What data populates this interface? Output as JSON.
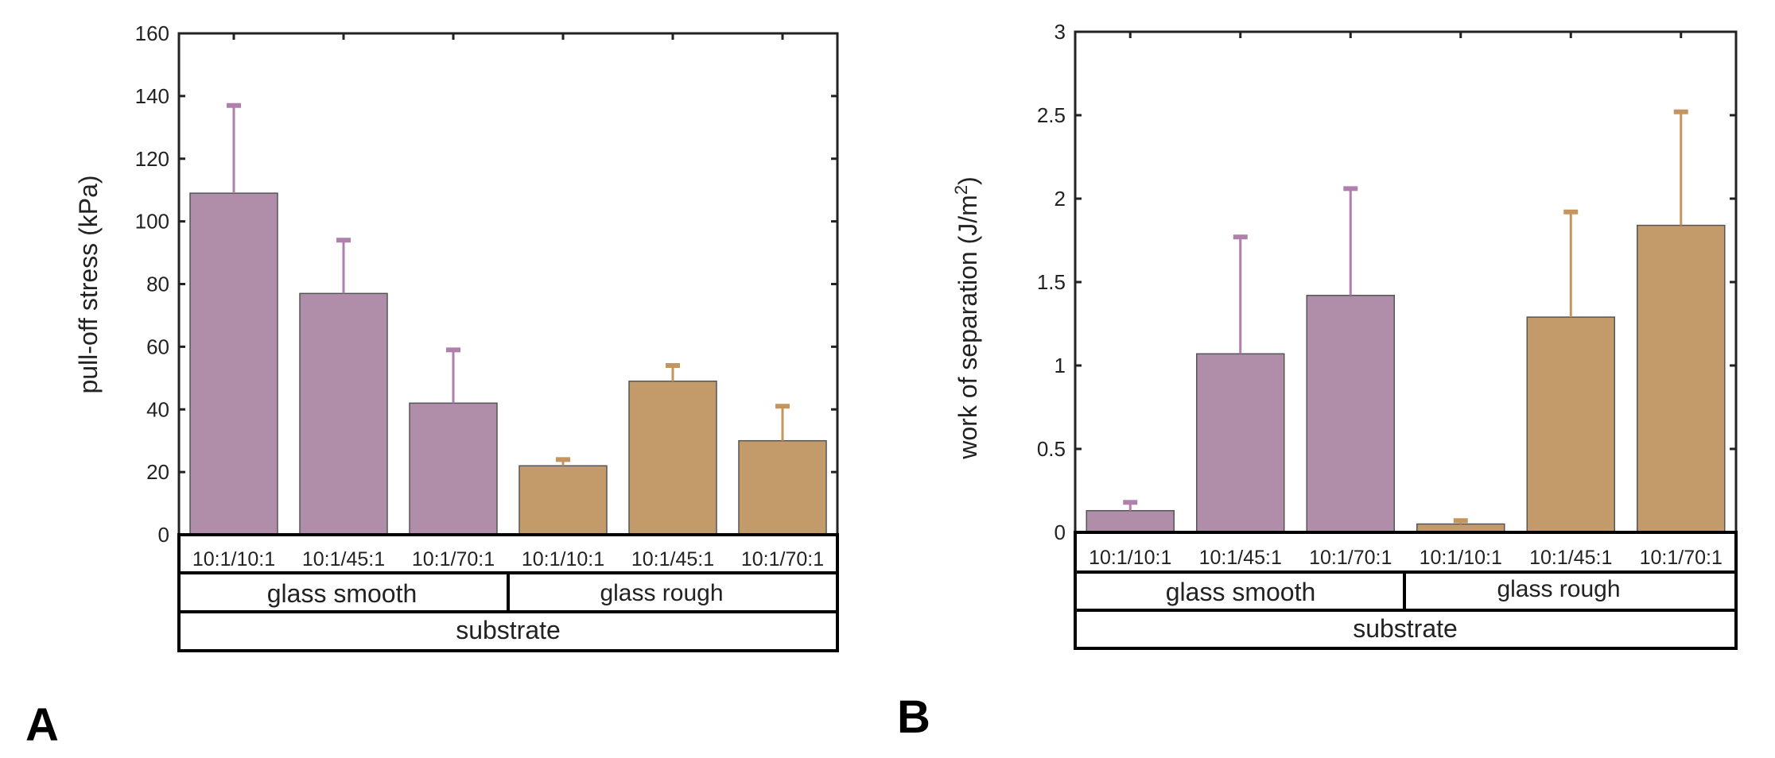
{
  "chart_data": [
    {
      "panel_label": "A",
      "type": "bar",
      "ylabel": "pull-off stress (kPa)",
      "ylim": [
        0,
        160
      ],
      "yticks": [
        "0",
        "20",
        "40",
        "60",
        "80",
        "100",
        "120",
        "140",
        "160"
      ],
      "ytick_values": [
        0,
        20,
        40,
        60,
        80,
        100,
        120,
        140,
        160
      ],
      "categories": [
        "10:1/10:1",
        "10:1/45:1",
        "10:1/70:1",
        "10:1/10:1",
        "10:1/45:1",
        "10:1/70:1"
      ],
      "values": [
        109,
        77,
        42,
        22,
        49,
        30
      ],
      "error_upper": [
        137,
        94,
        59,
        24,
        54,
        41
      ],
      "groups": [
        {
          "label": "glass smooth",
          "color": "#b08ea9",
          "error_color": "#b07fab",
          "start": 0,
          "count": 3
        },
        {
          "label": "glass rough",
          "color": "#c39b6b",
          "error_color": "#c4955f",
          "start": 3,
          "count": 3
        }
      ],
      "group_axis_label": "substrate"
    },
    {
      "panel_label": "B",
      "type": "bar",
      "ylabel_main": "work of separation (J/m",
      "ylabel_sup": "2",
      "ylabel_end": ")",
      "ylim": [
        0,
        3
      ],
      "yticks": [
        "0",
        "0.5",
        "1",
        "1.5",
        "2",
        "2.5",
        "3"
      ],
      "ytick_values": [
        0,
        0.5,
        1,
        1.5,
        2,
        2.5,
        3
      ],
      "categories": [
        "10:1/10:1",
        "10:1/45:1",
        "10:1/70:1",
        "10:1/10:1",
        "10:1/45:1",
        "10:1/70:1"
      ],
      "values": [
        0.13,
        1.07,
        1.42,
        0.05,
        1.29,
        1.84
      ],
      "error_upper": [
        0.18,
        1.77,
        2.06,
        0.07,
        1.92,
        2.52
      ],
      "groups": [
        {
          "label": "glass smooth",
          "color": "#b08ea9",
          "error_color": "#b07fab",
          "start": 0,
          "count": 3
        },
        {
          "label": "glass rough",
          "color": "#c39b6b",
          "error_color": "#c4955f",
          "start": 3,
          "count": 3
        }
      ],
      "group_axis_label": "substrate"
    }
  ]
}
